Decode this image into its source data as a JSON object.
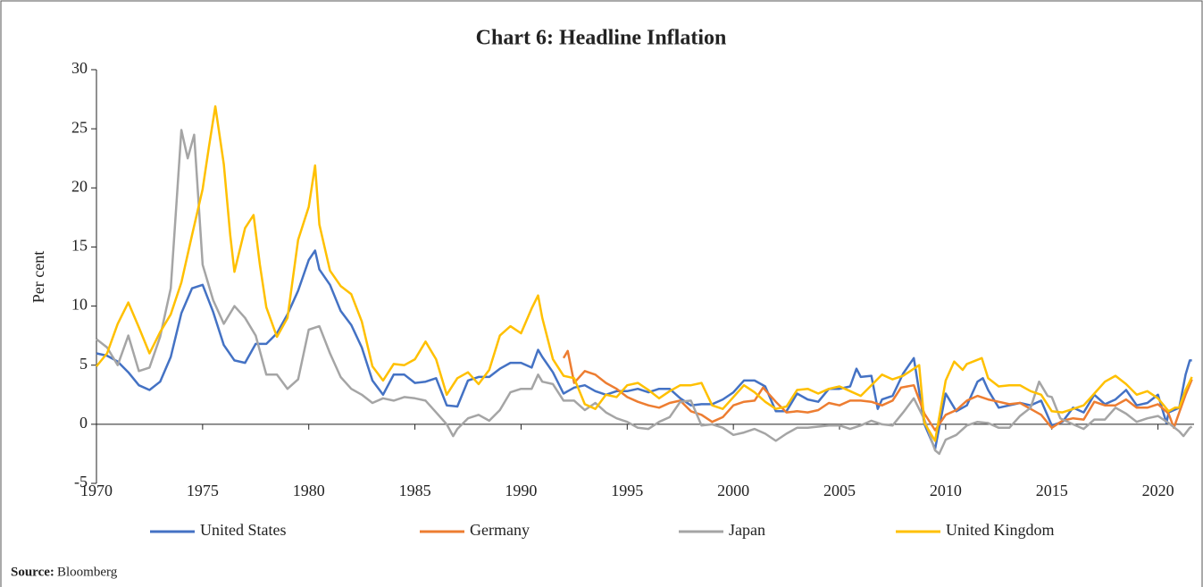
{
  "chart_data": {
    "type": "line",
    "title": "Chart 6: Headline Inflation",
    "y_label": "Per cent",
    "source_label": "Source:",
    "source": "Bloomberg",
    "xlim": [
      1970,
      2021.7
    ],
    "xticks": [
      1970,
      1975,
      1980,
      1985,
      1990,
      1995,
      2000,
      2005,
      2010,
      2015,
      2020
    ],
    "ylim": [
      -5,
      30
    ],
    "yticks": [
      -5,
      0,
      5,
      10,
      15,
      20,
      25,
      30
    ],
    "series": [
      {
        "name": "United States",
        "color": "#4472c4",
        "x": [
          1970,
          1970.5,
          1971,
          1971.5,
          1972,
          1972.5,
          1973,
          1973.5,
          1974,
          1974.5,
          1975,
          1975.5,
          1976,
          1976.5,
          1977,
          1977.5,
          1978,
          1978.5,
          1979,
          1979.5,
          1980,
          1980.3,
          1980.5,
          1981,
          1981.5,
          1982,
          1982.5,
          1983,
          1983.5,
          1984,
          1984.5,
          1985,
          1985.5,
          1986,
          1986.5,
          1987,
          1987.5,
          1988,
          1988.5,
          1989,
          1989.5,
          1990,
          1990.5,
          1990.8,
          1991,
          1991.5,
          1992,
          1992.5,
          1993,
          1993.5,
          1994,
          1994.5,
          1995,
          1995.5,
          1996,
          1996.5,
          1997,
          1997.5,
          1998,
          1998.5,
          1999,
          1999.5,
          2000,
          2000.5,
          2001,
          2001.5,
          2002,
          2002.5,
          2003,
          2003.5,
          2004,
          2004.5,
          2005,
          2005.5,
          2005.8,
          2006,
          2006.5,
          2006.8,
          2007,
          2007.5,
          2008,
          2008.5,
          2009,
          2009.5,
          2010,
          2010.5,
          2011,
          2011.5,
          2011.75,
          2012,
          2012.5,
          2013,
          2013.5,
          2014,
          2014.5,
          2015,
          2015.5,
          2016,
          2016.5,
          2017,
          2017.5,
          2018,
          2018.5,
          2019,
          2019.5,
          2020,
          2020.4,
          2020.5,
          2021,
          2021.3,
          2021.5,
          2021.6
        ],
        "values": [
          6.0,
          5.8,
          5.3,
          4.4,
          3.3,
          2.9,
          3.6,
          5.7,
          9.4,
          11.5,
          11.8,
          9.5,
          6.7,
          5.4,
          5.2,
          6.8,
          6.8,
          7.7,
          9.3,
          11.3,
          13.9,
          14.7,
          13.1,
          11.8,
          9.6,
          8.4,
          6.5,
          3.7,
          2.5,
          4.2,
          4.2,
          3.5,
          3.6,
          3.9,
          1.6,
          1.5,
          3.7,
          4.0,
          4.0,
          4.7,
          5.2,
          5.2,
          4.8,
          6.3,
          5.7,
          4.4,
          2.6,
          3.1,
          3.3,
          2.8,
          2.5,
          2.8,
          2.8,
          3.0,
          2.7,
          3.0,
          3.0,
          2.2,
          1.6,
          1.7,
          1.7,
          2.1,
          2.7,
          3.7,
          3.7,
          3.2,
          1.1,
          1.1,
          2.6,
          2.1,
          1.9,
          3.0,
          3.0,
          3.2,
          4.7,
          4.0,
          4.1,
          1.3,
          2.1,
          2.4,
          4.3,
          5.6,
          0.0,
          -2.1,
          2.6,
          1.1,
          1.6,
          3.6,
          3.9,
          2.9,
          1.4,
          1.6,
          1.8,
          1.6,
          2.0,
          -0.1,
          0.2,
          1.4,
          1.0,
          2.5,
          1.7,
          2.1,
          2.9,
          1.6,
          1.8,
          2.5,
          0.1,
          1.0,
          1.4,
          4.2,
          5.4,
          5.4
        ]
      },
      {
        "name": "Germany",
        "color": "#ed7d31",
        "x": [
          1992,
          1992.2,
          1992.5,
          1993,
          1993.5,
          1994,
          1994.5,
          1995,
          1995.5,
          1996,
          1996.5,
          1997,
          1997.5,
          1998,
          1998.5,
          1999,
          1999.5,
          2000,
          2000.5,
          2001,
          2001.4,
          2002,
          2002.5,
          2003,
          2003.5,
          2004,
          2004.5,
          2005,
          2005.5,
          2006,
          2006.5,
          2007,
          2007.5,
          2007.9,
          2008.5,
          2009,
          2009.5,
          2010,
          2010.5,
          2011,
          2011.5,
          2012,
          2012.5,
          2013,
          2013.5,
          2014,
          2014.5,
          2015,
          2015.5,
          2016,
          2016.5,
          2017,
          2017.5,
          2018,
          2018.5,
          2019,
          2019.5,
          2020,
          2020.5,
          2020.75,
          2021,
          2021.3,
          2021.6
        ],
        "values": [
          5.6,
          6.2,
          3.5,
          4.5,
          4.2,
          3.5,
          3.0,
          2.3,
          1.9,
          1.6,
          1.4,
          1.8,
          2.0,
          1.1,
          0.8,
          0.2,
          0.6,
          1.6,
          1.9,
          2.0,
          3.1,
          1.9,
          1.0,
          1.1,
          1.0,
          1.2,
          1.8,
          1.6,
          2.0,
          2.0,
          1.9,
          1.6,
          2.0,
          3.1,
          3.3,
          0.9,
          -0.5,
          0.8,
          1.2,
          2.0,
          2.4,
          2.1,
          1.9,
          1.7,
          1.8,
          1.3,
          0.8,
          -0.3,
          0.3,
          0.5,
          0.4,
          1.9,
          1.6,
          1.6,
          2.1,
          1.4,
          1.4,
          1.7,
          0.9,
          -0.3,
          1.0,
          2.5,
          3.8
        ]
      },
      {
        "name": "Japan",
        "color": "#a5a5a5",
        "x": [
          1970,
          1970.5,
          1971,
          1971.5,
          1972,
          1972.5,
          1973,
          1973.5,
          1974,
          1974.3,
          1974.6,
          1975,
          1975.5,
          1976,
          1976.5,
          1977,
          1977.5,
          1978,
          1978.5,
          1979,
          1979.5,
          1980,
          1980.5,
          1981,
          1981.5,
          1982,
          1982.5,
          1983,
          1983.5,
          1984,
          1984.5,
          1985,
          1985.5,
          1986,
          1986.5,
          1986.8,
          1987,
          1987.5,
          1988,
          1988.5,
          1989,
          1989.5,
          1990,
          1990.5,
          1990.8,
          1991,
          1991.5,
          1992,
          1992.5,
          1993,
          1993.5,
          1994,
          1994.5,
          1995,
          1995.5,
          1996,
          1996.5,
          1997,
          1997.5,
          1998,
          1998.5,
          1999,
          1999.5,
          2000,
          2000.5,
          2001,
          2001.5,
          2002,
          2002.5,
          2003,
          2003.5,
          2004,
          2004.5,
          2005,
          2005.5,
          2006,
          2006.5,
          2007,
          2007.5,
          2008,
          2008.5,
          2009,
          2009.5,
          2009.7,
          2010,
          2010.5,
          2011,
          2011.5,
          2012,
          2012.5,
          2013,
          2013.5,
          2014,
          2014.4,
          2014.8,
          2015,
          2015.4,
          2016,
          2016.5,
          2017,
          2017.5,
          2018,
          2018.5,
          2019,
          2019.5,
          2020,
          2020.5,
          2021,
          2021.2,
          2021.5,
          2021.6
        ],
        "values": [
          7.2,
          6.5,
          5.0,
          7.5,
          4.5,
          4.8,
          7.4,
          11.5,
          24.9,
          22.5,
          24.5,
          13.5,
          10.5,
          8.5,
          10.0,
          9.0,
          7.5,
          4.2,
          4.2,
          3.0,
          3.8,
          8.0,
          8.3,
          6.0,
          4.0,
          3.0,
          2.5,
          1.8,
          2.2,
          2.0,
          2.3,
          2.2,
          2.0,
          1.0,
          0.0,
          -1.0,
          -0.4,
          0.5,
          0.8,
          0.3,
          1.2,
          2.7,
          3.0,
          3.0,
          4.2,
          3.6,
          3.4,
          2.0,
          2.0,
          1.2,
          1.8,
          1.0,
          0.5,
          0.2,
          -0.3,
          -0.4,
          0.2,
          0.6,
          1.9,
          2.0,
          -0.1,
          0.0,
          -0.3,
          -0.9,
          -0.7,
          -0.4,
          -0.8,
          -1.4,
          -0.8,
          -0.3,
          -0.3,
          -0.2,
          -0.1,
          -0.1,
          -0.4,
          -0.1,
          0.3,
          0.0,
          -0.1,
          1.0,
          2.2,
          0.4,
          -2.2,
          -2.5,
          -1.3,
          -0.9,
          -0.1,
          0.2,
          0.1,
          -0.3,
          -0.3,
          0.7,
          1.4,
          3.6,
          2.4,
          2.3,
          0.5,
          0.0,
          -0.4,
          0.4,
          0.4,
          1.4,
          0.9,
          0.2,
          0.5,
          0.7,
          0.1,
          -0.6,
          -1.0,
          -0.3,
          -0.2
        ]
      },
      {
        "name": "United Kingdom",
        "color": "#ffc000",
        "x": [
          1970,
          1970.5,
          1971,
          1971.5,
          1972,
          1972.5,
          1973,
          1973.5,
          1974,
          1974.5,
          1975,
          1975.3,
          1975.6,
          1976,
          1976.3,
          1976.5,
          1977,
          1977.4,
          1977.7,
          1978,
          1978.5,
          1979,
          1979.5,
          1980,
          1980.3,
          1980.5,
          1981,
          1981.5,
          1982,
          1982.5,
          1983,
          1983.5,
          1984,
          1984.5,
          1985,
          1985.5,
          1986,
          1986.5,
          1987,
          1987.5,
          1988,
          1988.5,
          1989,
          1989.5,
          1990,
          1990.5,
          1990.8,
          1991,
          1991.5,
          1992,
          1992.5,
          1993,
          1993.5,
          1994,
          1994.5,
          1995,
          1995.5,
          1996,
          1996.5,
          1997,
          1997.5,
          1998,
          1998.5,
          1999,
          1999.5,
          2000,
          2000.5,
          2001,
          2001.5,
          2002,
          2002.5,
          2003,
          2003.5,
          2004,
          2004.5,
          2005,
          2005.5,
          2006,
          2006.5,
          2007,
          2007.5,
          2008,
          2008.75,
          2009,
          2009.5,
          2010,
          2010.4,
          2010.8,
          2011,
          2011.7,
          2012,
          2012.5,
          2013,
          2013.5,
          2014,
          2014.5,
          2015,
          2015.5,
          2016,
          2016.5,
          2017,
          2017.5,
          2018,
          2018.5,
          2019,
          2019.5,
          2020,
          2020.5,
          2020.8,
          2021,
          2021.3,
          2021.6
        ],
        "values": [
          4.9,
          6.0,
          8.5,
          10.3,
          8.2,
          6.0,
          7.8,
          9.3,
          12.0,
          16.0,
          19.9,
          23.5,
          26.9,
          22.0,
          16.0,
          12.9,
          16.6,
          17.7,
          13.5,
          9.9,
          7.4,
          9.0,
          15.6,
          18.4,
          21.9,
          16.9,
          13.0,
          11.7,
          11.0,
          8.7,
          4.9,
          3.7,
          5.1,
          5.0,
          5.5,
          7.0,
          5.5,
          2.5,
          3.9,
          4.4,
          3.4,
          4.6,
          7.5,
          8.3,
          7.7,
          9.8,
          10.9,
          9.0,
          5.5,
          4.1,
          3.9,
          1.7,
          1.3,
          2.5,
          2.3,
          3.3,
          3.5,
          2.9,
          2.2,
          2.8,
          3.3,
          3.3,
          3.5,
          1.6,
          1.3,
          2.3,
          3.3,
          2.7,
          1.9,
          1.3,
          1.5,
          2.9,
          3.0,
          2.6,
          3.0,
          3.2,
          2.8,
          2.4,
          3.3,
          4.2,
          3.8,
          4.1,
          5.0,
          0.1,
          -1.4,
          3.7,
          5.3,
          4.6,
          5.1,
          5.6,
          3.9,
          3.2,
          3.3,
          3.3,
          2.8,
          2.5,
          1.1,
          1.0,
          1.3,
          1.6,
          2.6,
          3.6,
          4.1,
          3.4,
          2.5,
          2.8,
          2.2,
          1.1,
          1.4,
          1.4,
          2.9,
          4.0
        ]
      }
    ]
  }
}
